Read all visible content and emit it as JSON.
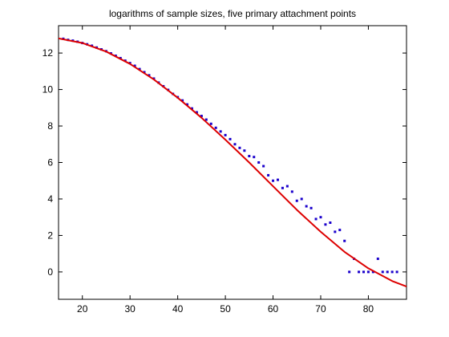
{
  "chart_data": {
    "type": "scatter",
    "title": "logarithms of sample sizes, five primary attachment points",
    "xlabel": "",
    "ylabel": "",
    "xlim": [
      15,
      88
    ],
    "ylim": [
      -1.5,
      13.5
    ],
    "x_ticks": [
      20,
      30,
      40,
      50,
      60,
      70,
      80
    ],
    "y_ticks": [
      0,
      2,
      4,
      6,
      8,
      10,
      12
    ],
    "grid": false,
    "legend": "none",
    "colors": {
      "points": "#1a00cc",
      "fit": "#dd0000",
      "axes": "#000000"
    },
    "series": [
      {
        "kind": "points",
        "x": [
          16,
          17,
          18,
          19,
          20,
          21,
          22,
          23,
          24,
          25,
          26,
          27,
          28,
          29,
          30,
          31,
          32,
          33,
          34,
          35,
          36,
          37,
          38,
          39,
          40,
          41,
          42,
          43,
          44,
          45,
          46,
          47,
          48,
          49,
          50,
          51,
          52,
          53,
          54,
          55,
          56,
          57,
          58,
          59,
          60,
          61,
          62,
          63,
          64,
          65,
          66,
          67,
          68,
          69,
          70,
          71,
          72,
          73,
          74,
          75,
          76,
          77,
          78,
          79,
          80,
          81,
          82,
          83,
          84,
          85,
          86
        ],
        "y": [
          12.78,
          12.72,
          12.68,
          12.62,
          12.55,
          12.48,
          12.4,
          12.3,
          12.2,
          12.1,
          11.98,
          11.85,
          11.72,
          11.58,
          11.45,
          11.3,
          11.12,
          10.95,
          10.78,
          10.6,
          10.38,
          10.18,
          9.98,
          9.76,
          9.58,
          9.4,
          9.18,
          8.96,
          8.75,
          8.55,
          8.35,
          8.12,
          7.9,
          7.7,
          7.5,
          7.28,
          7.0,
          6.8,
          6.65,
          6.35,
          6.3,
          6.0,
          5.8,
          5.3,
          5.0,
          5.05,
          4.6,
          4.7,
          4.4,
          3.9,
          4.0,
          3.6,
          3.5,
          2.9,
          3.0,
          2.6,
          2.7,
          2.2,
          2.3,
          1.7,
          0.0,
          0.72,
          0.0,
          0.0,
          0.0,
          0.0,
          0.72,
          0.0,
          0.0,
          0.0,
          0.0
        ]
      },
      {
        "kind": "fit",
        "x": [
          15,
          20,
          25,
          30,
          35,
          40,
          45,
          50,
          55,
          60,
          65,
          70,
          75,
          80,
          85,
          88
        ],
        "y": [
          12.8,
          12.55,
          12.08,
          11.4,
          10.55,
          9.55,
          8.45,
          7.25,
          6.0,
          4.7,
          3.4,
          2.2,
          1.1,
          0.2,
          -0.5,
          -0.8
        ]
      }
    ]
  }
}
